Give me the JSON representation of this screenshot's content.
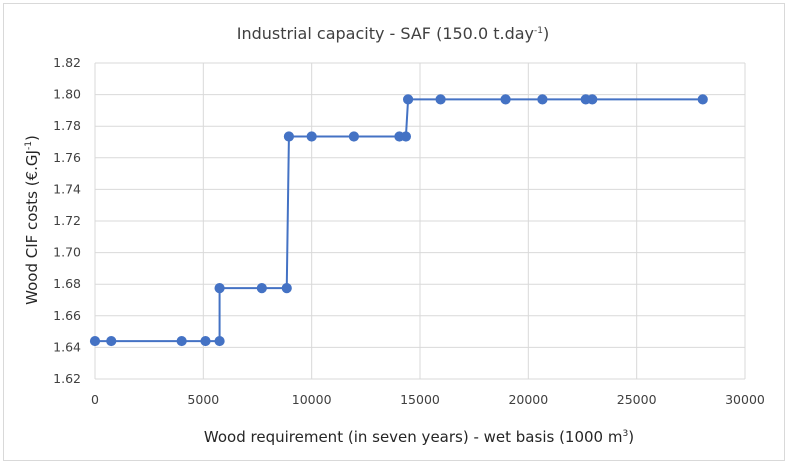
{
  "chart_data": {
    "type": "line",
    "title": "Industrial capacity - SAF (150.0 t.day",
    "title_sup": "-1",
    "title_end": ")",
    "xlabel": "Wood requirement (in seven years) - wet basis (1000 m",
    "xlabel_sup": "3",
    "xlabel_end": ")",
    "ylabel": "Wood CIF costs (€.GJ",
    "ylabel_sup": "-1",
    "ylabel_end": ")",
    "xlim": [
      0,
      30000
    ],
    "ylim": [
      1.62,
      1.82
    ],
    "x_ticks": [
      "0",
      "5000",
      "10000",
      "15000",
      "20000",
      "25000",
      "30000"
    ],
    "y_ticks": [
      "1.62",
      "1.64",
      "1.66",
      "1.68",
      "1.70",
      "1.72",
      "1.74",
      "1.76",
      "1.78",
      "1.80",
      "1.82"
    ],
    "grid": true,
    "series_color": "#4472C4",
    "series": [
      {
        "points": [
          [
            0,
            1.644
          ],
          [
            750,
            1.644
          ],
          [
            4000,
            1.644
          ],
          [
            5100,
            1.644
          ],
          [
            5750,
            1.644
          ],
          [
            5750,
            1.6775
          ],
          [
            7700,
            1.6775
          ],
          [
            8850,
            1.6775
          ],
          [
            8950,
            1.7735
          ],
          [
            10000,
            1.7735
          ],
          [
            11950,
            1.7735
          ],
          [
            14050,
            1.7735
          ],
          [
            14350,
            1.7735
          ],
          [
            14450,
            1.797
          ],
          [
            15950,
            1.797
          ],
          [
            18950,
            1.797
          ],
          [
            20650,
            1.797
          ],
          [
            22650,
            1.797
          ],
          [
            22950,
            1.797
          ],
          [
            28050,
            1.797
          ]
        ],
        "markers": [
          [
            0,
            1.644
          ],
          [
            750,
            1.644
          ],
          [
            4000,
            1.644
          ],
          [
            5100,
            1.644
          ],
          [
            5750,
            1.644
          ],
          [
            5750,
            1.6775
          ],
          [
            7700,
            1.6775
          ],
          [
            8850,
            1.6775
          ],
          [
            8950,
            1.7735
          ],
          [
            10000,
            1.7735
          ],
          [
            11950,
            1.7735
          ],
          [
            14050,
            1.7735
          ],
          [
            14350,
            1.7735
          ],
          [
            14450,
            1.797
          ],
          [
            15950,
            1.797
          ],
          [
            18950,
            1.797
          ],
          [
            20650,
            1.797
          ],
          [
            22650,
            1.797
          ],
          [
            22950,
            1.797
          ],
          [
            28050,
            1.797
          ]
        ]
      }
    ]
  }
}
